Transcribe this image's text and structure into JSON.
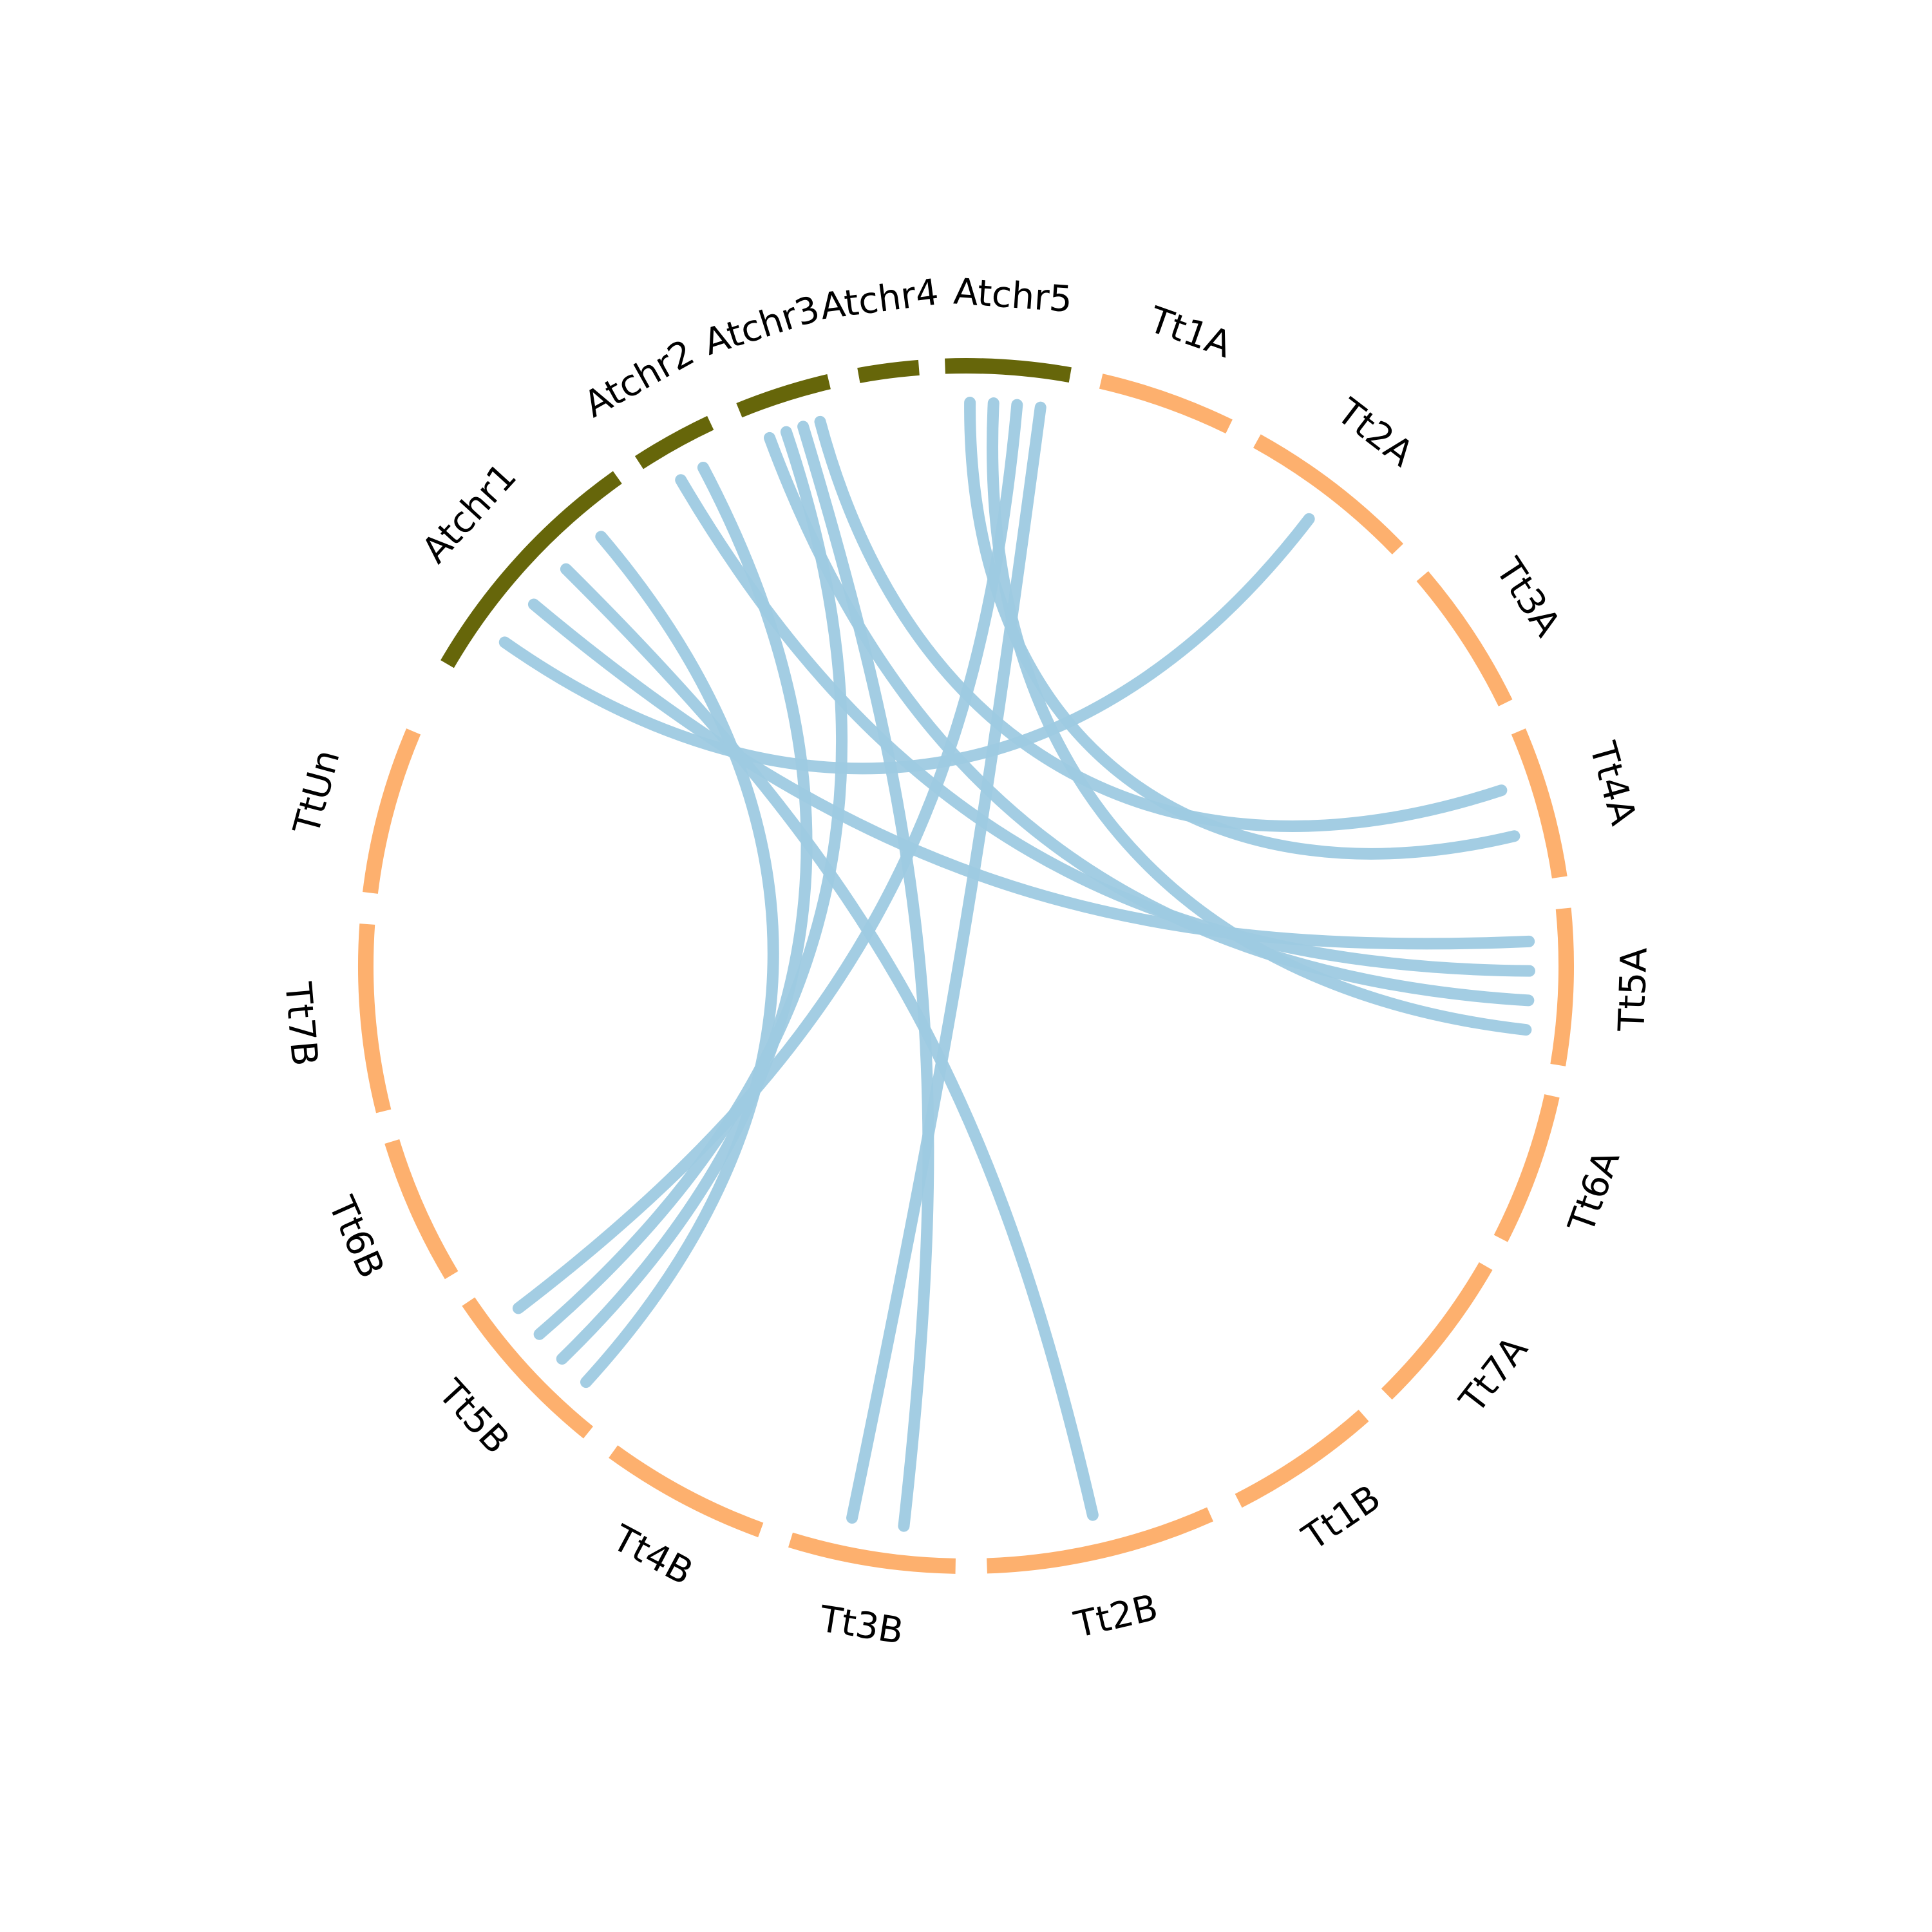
{
  "colors": {
    "arabidopsis": "#66660a",
    "triticum": "#fdb06e",
    "link": "#9ecae1",
    "background": "#ffffff"
  },
  "segments": [
    {
      "id": "Atchr1",
      "label": "Atchr1",
      "group": "arabidopsis",
      "start": -59.8,
      "end": -35.5
    },
    {
      "id": "Atchr2",
      "label": "Atchr2",
      "group": "arabidopsis",
      "start": -33.0,
      "end": -25.2
    },
    {
      "id": "Atchr3",
      "label": "Atchr3",
      "group": "arabidopsis",
      "start": -22.2,
      "end": -13.2
    },
    {
      "id": "Atchr4",
      "label": "Atchr4",
      "group": "arabidopsis",
      "start": -10.3,
      "end": -4.5
    },
    {
      "id": "Atchr5",
      "label": "Atchr5",
      "group": "arabidopsis",
      "start": -2.0,
      "end": 10.0
    },
    {
      "id": "Tt1A",
      "label": "Tt1A",
      "group": "triticum",
      "start": 13.0,
      "end": 26.0
    },
    {
      "id": "Tt2A",
      "label": "Tt2A",
      "group": "triticum",
      "start": 29.0,
      "end": 46.0
    },
    {
      "id": "Tt3A",
      "label": "Tt3A",
      "group": "triticum",
      "start": 49.5,
      "end": 64.0
    },
    {
      "id": "Tt4A",
      "label": "Tt4A",
      "group": "triticum",
      "start": 67.0,
      "end": 81.5
    },
    {
      "id": "Tt5A",
      "label": "Tt5A",
      "group": "triticum",
      "start": 84.5,
      "end": 99.5
    },
    {
      "id": "Tt6A",
      "label": "Tt6A",
      "group": "triticum",
      "start": 102.5,
      "end": 117.0
    },
    {
      "id": "Tt7A",
      "label": "Tt7A",
      "group": "triticum",
      "start": 120.0,
      "end": 135.5
    },
    {
      "id": "Tt1B",
      "label": "Tt1B",
      "group": "triticum",
      "start": 138.5,
      "end": 153.0
    },
    {
      "id": "Tt2B",
      "label": "Tt2B",
      "group": "triticum",
      "start": 156.0,
      "end": 178.0
    },
    {
      "id": "Tt3B",
      "label": "Tt3B",
      "group": "triticum",
      "start": 181.0,
      "end": 197.0
    },
    {
      "id": "Tt4B",
      "label": "Tt4B",
      "group": "triticum",
      "start": 200.0,
      "end": 216.0
    },
    {
      "id": "Tt5B",
      "label": "Tt5B",
      "group": "triticum",
      "start": 219.0,
      "end": 236.0
    },
    {
      "id": "Tt6B",
      "label": "Tt6B",
      "group": "triticum",
      "start": 239.0,
      "end": 253.0
    },
    {
      "id": "Tt7B",
      "label": "Tt7B",
      "group": "triticum",
      "start": 256.0,
      "end": 274.0
    },
    {
      "id": "TtUn",
      "label": "TtUn",
      "group": "triticum",
      "start": 277.0,
      "end": 293.0
    }
  ],
  "links": [
    {
      "from": "Atchr1",
      "to": "Tt2A"
    },
    {
      "from": "Atchr1",
      "to": "Tt5A"
    },
    {
      "from": "Atchr1",
      "to": "Tt2B"
    },
    {
      "from": "Atchr1",
      "to": "Tt5B"
    },
    {
      "from": "Atchr2",
      "to": "Tt5A"
    },
    {
      "from": "Atchr2",
      "to": "Tt5B"
    },
    {
      "from": "Atchr3",
      "to": "Tt5A"
    },
    {
      "from": "Atchr3",
      "to": "Tt5B"
    },
    {
      "from": "Atchr3",
      "to": "Tt3B"
    },
    {
      "from": "Atchr3",
      "to": "Tt4A"
    },
    {
      "from": "Atchr5",
      "to": "Tt4A"
    },
    {
      "from": "Atchr5",
      "to": "Tt5A"
    },
    {
      "from": "Atchr5",
      "to": "Tt5B"
    },
    {
      "from": "Atchr5",
      "to": "Tt3B"
    }
  ]
}
